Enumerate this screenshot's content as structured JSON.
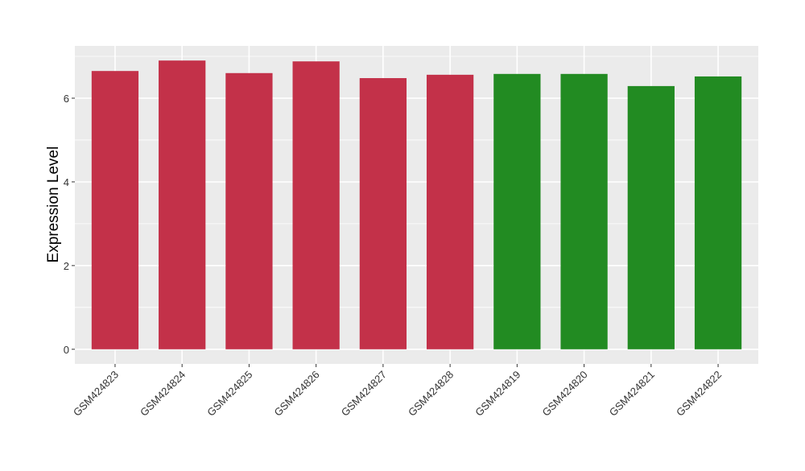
{
  "chart_data": {
    "type": "bar",
    "title": "",
    "xlabel": "",
    "ylabel": "Expression Level",
    "categories": [
      "GSM424823",
      "GSM424824",
      "GSM424825",
      "GSM424826",
      "GSM424827",
      "GSM424828",
      "GSM424819",
      "GSM424820",
      "GSM424821",
      "GSM424822"
    ],
    "values": [
      6.65,
      6.9,
      6.6,
      6.88,
      6.48,
      6.56,
      6.58,
      6.58,
      6.29,
      6.52
    ],
    "bar_colors": [
      "#C33149",
      "#C33149",
      "#C33149",
      "#C33149",
      "#C33149",
      "#C33149",
      "#228B22",
      "#228B22",
      "#228B22",
      "#228B22"
    ],
    "ylim": [
      -0.35,
      7.25
    ],
    "yticks": [
      0,
      2,
      4,
      6
    ],
    "ytick_labels": [
      "0",
      "2",
      "4",
      "6"
    ],
    "grid": true,
    "panel_background": "#EBEBEB"
  }
}
